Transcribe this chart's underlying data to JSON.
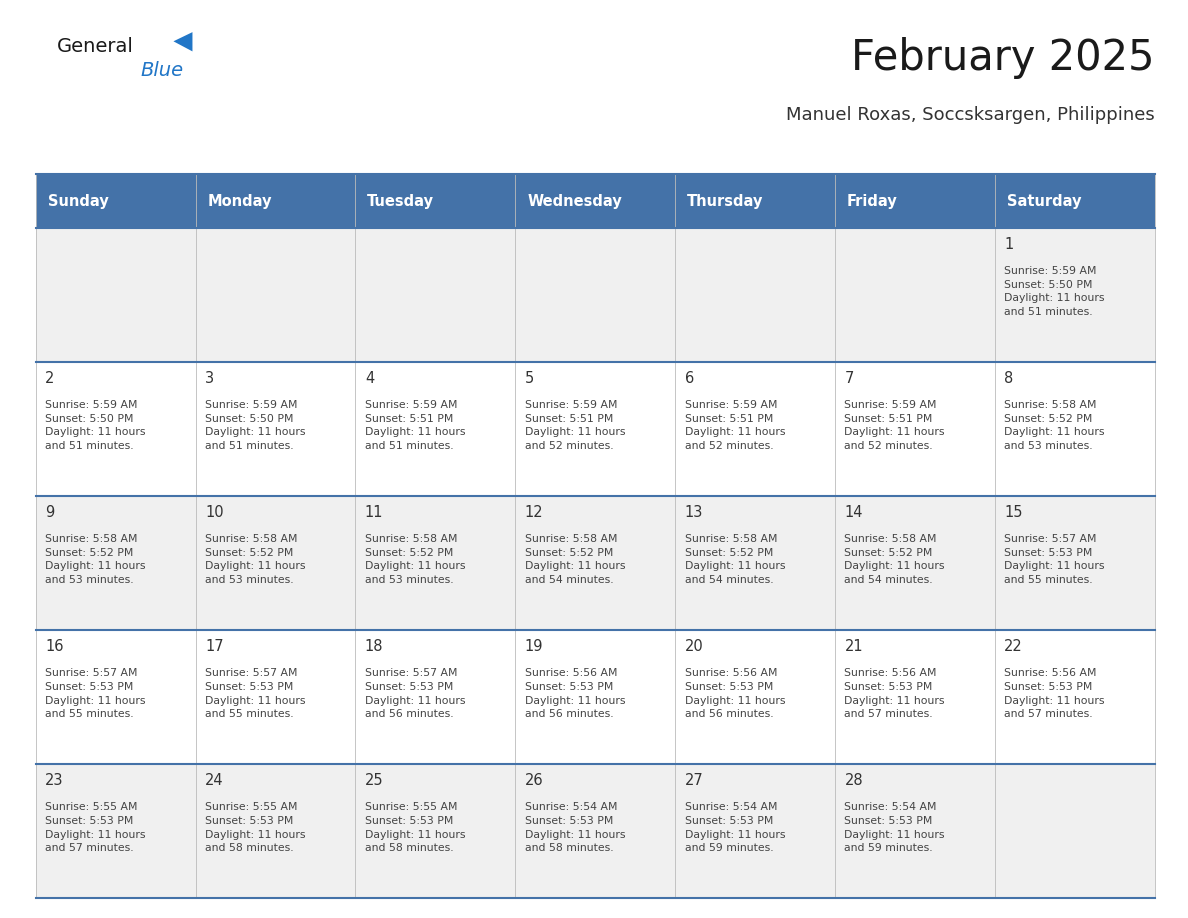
{
  "title": "February 2025",
  "subtitle": "Manuel Roxas, Soccsksargen, Philippines",
  "days_of_week": [
    "Sunday",
    "Monday",
    "Tuesday",
    "Wednesday",
    "Thursday",
    "Friday",
    "Saturday"
  ],
  "header_bg": "#4472a8",
  "header_text": "#ffffff",
  "cell_bg_odd": "#f0f0f0",
  "cell_bg_even": "#ffffff",
  "border_color": "#4472a8",
  "title_color": "#1a1a1a",
  "subtitle_color": "#333333",
  "day_num_color": "#333333",
  "cell_text_color": "#444444",
  "calendar_data": [
    [
      null,
      null,
      null,
      null,
      null,
      null,
      {
        "day": 1,
        "sunrise": "5:59 AM",
        "sunset": "5:50 PM",
        "daylight": "11 hours\nand 51 minutes."
      }
    ],
    [
      {
        "day": 2,
        "sunrise": "5:59 AM",
        "sunset": "5:50 PM",
        "daylight": "11 hours\nand 51 minutes."
      },
      {
        "day": 3,
        "sunrise": "5:59 AM",
        "sunset": "5:50 PM",
        "daylight": "11 hours\nand 51 minutes."
      },
      {
        "day": 4,
        "sunrise": "5:59 AM",
        "sunset": "5:51 PM",
        "daylight": "11 hours\nand 51 minutes."
      },
      {
        "day": 5,
        "sunrise": "5:59 AM",
        "sunset": "5:51 PM",
        "daylight": "11 hours\nand 52 minutes."
      },
      {
        "day": 6,
        "sunrise": "5:59 AM",
        "sunset": "5:51 PM",
        "daylight": "11 hours\nand 52 minutes."
      },
      {
        "day": 7,
        "sunrise": "5:59 AM",
        "sunset": "5:51 PM",
        "daylight": "11 hours\nand 52 minutes."
      },
      {
        "day": 8,
        "sunrise": "5:58 AM",
        "sunset": "5:52 PM",
        "daylight": "11 hours\nand 53 minutes."
      }
    ],
    [
      {
        "day": 9,
        "sunrise": "5:58 AM",
        "sunset": "5:52 PM",
        "daylight": "11 hours\nand 53 minutes."
      },
      {
        "day": 10,
        "sunrise": "5:58 AM",
        "sunset": "5:52 PM",
        "daylight": "11 hours\nand 53 minutes."
      },
      {
        "day": 11,
        "sunrise": "5:58 AM",
        "sunset": "5:52 PM",
        "daylight": "11 hours\nand 53 minutes."
      },
      {
        "day": 12,
        "sunrise": "5:58 AM",
        "sunset": "5:52 PM",
        "daylight": "11 hours\nand 54 minutes."
      },
      {
        "day": 13,
        "sunrise": "5:58 AM",
        "sunset": "5:52 PM",
        "daylight": "11 hours\nand 54 minutes."
      },
      {
        "day": 14,
        "sunrise": "5:58 AM",
        "sunset": "5:52 PM",
        "daylight": "11 hours\nand 54 minutes."
      },
      {
        "day": 15,
        "sunrise": "5:57 AM",
        "sunset": "5:53 PM",
        "daylight": "11 hours\nand 55 minutes."
      }
    ],
    [
      {
        "day": 16,
        "sunrise": "5:57 AM",
        "sunset": "5:53 PM",
        "daylight": "11 hours\nand 55 minutes."
      },
      {
        "day": 17,
        "sunrise": "5:57 AM",
        "sunset": "5:53 PM",
        "daylight": "11 hours\nand 55 minutes."
      },
      {
        "day": 18,
        "sunrise": "5:57 AM",
        "sunset": "5:53 PM",
        "daylight": "11 hours\nand 56 minutes."
      },
      {
        "day": 19,
        "sunrise": "5:56 AM",
        "sunset": "5:53 PM",
        "daylight": "11 hours\nand 56 minutes."
      },
      {
        "day": 20,
        "sunrise": "5:56 AM",
        "sunset": "5:53 PM",
        "daylight": "11 hours\nand 56 minutes."
      },
      {
        "day": 21,
        "sunrise": "5:56 AM",
        "sunset": "5:53 PM",
        "daylight": "11 hours\nand 57 minutes."
      },
      {
        "day": 22,
        "sunrise": "5:56 AM",
        "sunset": "5:53 PM",
        "daylight": "11 hours\nand 57 minutes."
      }
    ],
    [
      {
        "day": 23,
        "sunrise": "5:55 AM",
        "sunset": "5:53 PM",
        "daylight": "11 hours\nand 57 minutes."
      },
      {
        "day": 24,
        "sunrise": "5:55 AM",
        "sunset": "5:53 PM",
        "daylight": "11 hours\nand 58 minutes."
      },
      {
        "day": 25,
        "sunrise": "5:55 AM",
        "sunset": "5:53 PM",
        "daylight": "11 hours\nand 58 minutes."
      },
      {
        "day": 26,
        "sunrise": "5:54 AM",
        "sunset": "5:53 PM",
        "daylight": "11 hours\nand 58 minutes."
      },
      {
        "day": 27,
        "sunrise": "5:54 AM",
        "sunset": "5:53 PM",
        "daylight": "11 hours\nand 59 minutes."
      },
      {
        "day": 28,
        "sunrise": "5:54 AM",
        "sunset": "5:53 PM",
        "daylight": "11 hours\nand 59 minutes."
      },
      null
    ]
  ],
  "logo_general_color": "#1a1a1a",
  "logo_blue_color": "#2176C7",
  "logo_triangle_color": "#2176C7"
}
